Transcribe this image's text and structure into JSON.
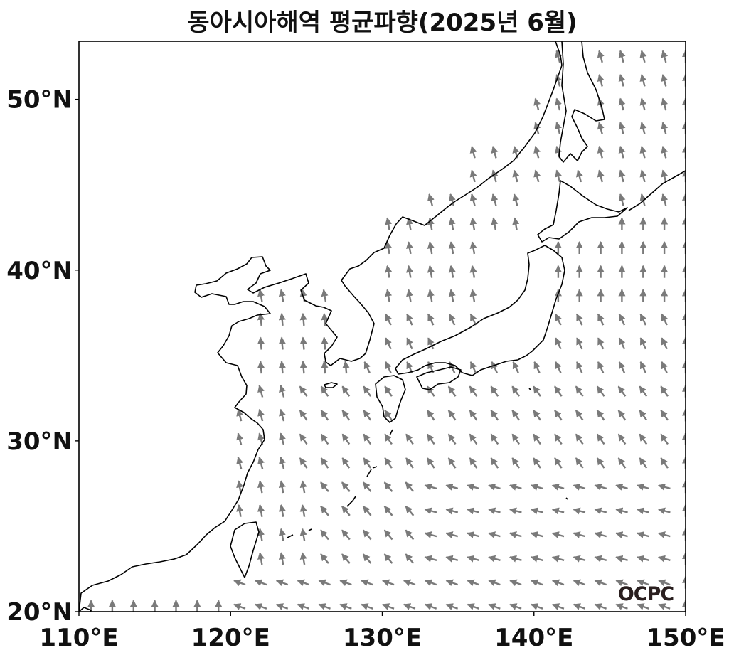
{
  "title": "동아시아해역 평균파향(2025년 6월)",
  "logo": "OCPC",
  "colors": {
    "arrow": "#7a7a7a",
    "coast": "#000000",
    "frame": "#000000",
    "background": "#ffffff"
  },
  "map_data": {
    "type": "quiver",
    "projection": "plate-carree",
    "lon_range": [
      110,
      150
    ],
    "lat_range": [
      20,
      53.4
    ],
    "grid_step_deg": 1.4,
    "x_ticks": [
      {
        "value": 110,
        "label": "110°E"
      },
      {
        "value": 120,
        "label": "120°E"
      },
      {
        "value": 130,
        "label": "130°E"
      },
      {
        "value": 140,
        "label": "140°E"
      },
      {
        "value": 150,
        "label": "150°E"
      }
    ],
    "y_ticks": [
      {
        "value": 20,
        "label": "20°N"
      },
      {
        "value": 30,
        "label": "30°N"
      },
      {
        "value": 40,
        "label": "40°N"
      },
      {
        "value": 50,
        "label": "50°N"
      }
    ],
    "direction_field": [
      {
        "lat_min": 20,
        "lat_max": 22.5,
        "lon_min": 110,
        "lon_max": 120,
        "dir_deg": 0
      },
      {
        "lat_min": 20,
        "lat_max": 22.5,
        "lon_min": 120,
        "lon_max": 150,
        "dir_deg": 290
      },
      {
        "lat_min": 22.5,
        "lat_max": 28,
        "lon_min": 110,
        "lon_max": 126,
        "dir_deg": 350
      },
      {
        "lat_min": 22.5,
        "lat_max": 28,
        "lon_min": 126,
        "lon_max": 133,
        "dir_deg": 320
      },
      {
        "lat_min": 22.5,
        "lat_max": 28,
        "lon_min": 133,
        "lon_max": 150,
        "dir_deg": 285
      },
      {
        "lat_min": 28,
        "lat_max": 34,
        "lon_min": 110,
        "lon_max": 124,
        "dir_deg": 345
      },
      {
        "lat_min": 28,
        "lat_max": 34,
        "lon_min": 124,
        "lon_max": 150,
        "dir_deg": 325
      },
      {
        "lat_min": 34,
        "lat_max": 38,
        "lon_min": 110,
        "lon_max": 129,
        "dir_deg": 355
      },
      {
        "lat_min": 34,
        "lat_max": 38,
        "lon_min": 129,
        "lon_max": 150,
        "dir_deg": 335
      },
      {
        "lat_min": 38,
        "lat_max": 44,
        "lon_min": 110,
        "lon_max": 140,
        "dir_deg": 350
      },
      {
        "lat_min": 38,
        "lat_max": 44,
        "lon_min": 140,
        "lon_max": 150,
        "dir_deg": 0
      },
      {
        "lat_min": 44,
        "lat_max": 53.4,
        "lon_min": 110,
        "lon_max": 150,
        "dir_deg": 345
      }
    ]
  }
}
